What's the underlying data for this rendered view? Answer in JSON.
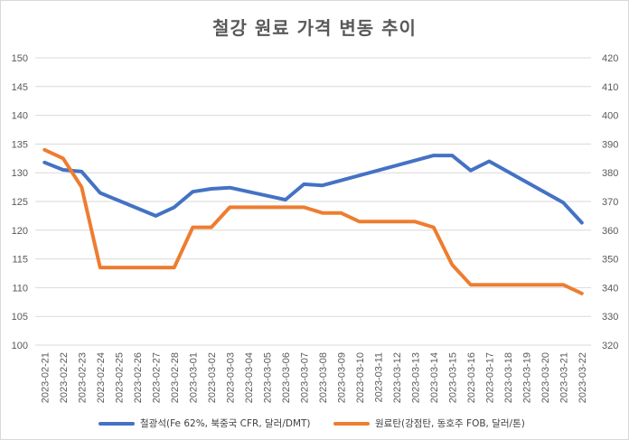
{
  "chart_data": {
    "type": "line",
    "title": "철강 원료 가격 변동 추이",
    "categories": [
      "2023-02-21",
      "2023-02-22",
      "2023-02-23",
      "2023-02-24",
      "2023-02-25",
      "2023-02-26",
      "2023-02-27",
      "2023-02-28",
      "2023-03-01",
      "2023-03-02",
      "2023-03-03",
      "2023-03-04",
      "2023-03-05",
      "2023-03-06",
      "2023-03-07",
      "2023-03-08",
      "2023-03-09",
      "2023-03-10",
      "2023-03-11",
      "2023-03-12",
      "2023-03-13",
      "2023-03-14",
      "2023-03-15",
      "2023-03-16",
      "2023-03-17",
      "2023-03-18",
      "2023-03-19",
      "2023-03-20",
      "2023-03-21",
      "2023-03-22"
    ],
    "y_left": {
      "min": 100,
      "max": 150,
      "step": 5,
      "ticks": [
        "150",
        "145",
        "140",
        "135",
        "130",
        "125",
        "120",
        "115",
        "110",
        "105",
        "100"
      ]
    },
    "y_right": {
      "min": 320,
      "max": 420,
      "step": 10,
      "ticks": [
        "420",
        "410",
        "400",
        "390",
        "380",
        "370",
        "360",
        "350",
        "340",
        "330",
        "320"
      ]
    },
    "series": [
      {
        "name": "철광석(Fe 62%, 북중국 CFR, 달러/DMT)",
        "axis": "left",
        "color": "#4472C4",
        "values": [
          131.8,
          130.5,
          130.2,
          126.5,
          null,
          null,
          122.5,
          124.0,
          126.7,
          127.2,
          127.4,
          null,
          null,
          125.3,
          128.0,
          127.8,
          null,
          null,
          null,
          null,
          null,
          133.0,
          133.0,
          130.4,
          132.0,
          null,
          null,
          null,
          124.8,
          121.3
        ]
      },
      {
        "name": "원료탄(강점탄, 동호주 FOB, 달러/톤)",
        "axis": "right",
        "color": "#ED7D31",
        "values": [
          388,
          385,
          375,
          347,
          347,
          347,
          347,
          347,
          361,
          361,
          368,
          368,
          368,
          368,
          368,
          366,
          366,
          363,
          363,
          363,
          363,
          361,
          348,
          341,
          341,
          341,
          341,
          341,
          341,
          338
        ]
      }
    ]
  }
}
